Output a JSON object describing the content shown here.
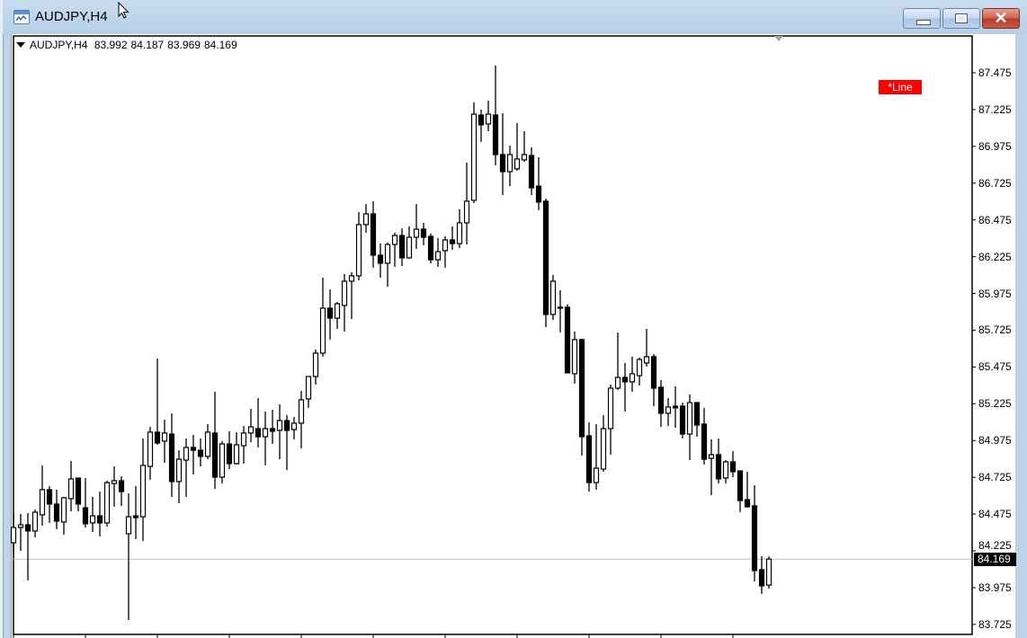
{
  "window": {
    "title": "AUDJPY,H4",
    "buttons": [
      "minimize",
      "maximize",
      "close"
    ]
  },
  "chart_header": {
    "symbol": "AUDJPY,H4",
    "open": "83.992",
    "high": "84.187",
    "low": "83.969",
    "close": "84.169"
  },
  "line_object_label": "*Line",
  "current_price": "84.169",
  "colors": {
    "background": "#ffffff",
    "candle_up_fill": "#ffffff",
    "candle_down_fill": "#000000",
    "candle_outline": "#000000",
    "current_price_line": "#c0c0c0",
    "line_label_bg": "#ff0000",
    "window_frame": "#bcd3ea"
  },
  "chart_data": {
    "type": "candlestick",
    "symbol": "AUDJPY",
    "timeframe": "H4",
    "ylim": [
      83.725,
      87.6
    ],
    "y_ticks": [
      "87.475",
      "87.225",
      "86.975",
      "86.725",
      "86.475",
      "86.225",
      "85.975",
      "85.725",
      "85.475",
      "85.225",
      "84.975",
      "84.725",
      "84.475",
      "84.225",
      "83.975",
      "83.725"
    ],
    "grid": false,
    "x_tick_every_bars": 10,
    "current_price_line": 84.169,
    "ohlc": [
      [
        84.28,
        84.482,
        84.201,
        84.384
      ],
      [
        84.384,
        84.476,
        84.225,
        84.402
      ],
      [
        84.402,
        84.482,
        84.024,
        84.36
      ],
      [
        84.36,
        84.506,
        84.317,
        84.488
      ],
      [
        84.47,
        84.806,
        84.396,
        84.641
      ],
      [
        84.641,
        84.665,
        84.415,
        84.543
      ],
      [
        84.543,
        84.641,
        84.372,
        84.427
      ],
      [
        84.421,
        84.592,
        84.335,
        84.586
      ],
      [
        84.58,
        84.836,
        84.494,
        84.714
      ],
      [
        84.72,
        84.72,
        84.494,
        84.543
      ],
      [
        84.518,
        84.72,
        84.384,
        84.409
      ],
      [
        84.415,
        84.592,
        84.353,
        84.463
      ],
      [
        84.463,
        84.628,
        84.323,
        84.415
      ],
      [
        84.415,
        84.702,
        84.39,
        84.689
      ],
      [
        84.683,
        84.799,
        84.525,
        84.702
      ],
      [
        84.702,
        84.732,
        84.531,
        84.628
      ],
      [
        84.341,
        84.616,
        83.755,
        84.457
      ],
      [
        84.463,
        84.665,
        84.305,
        84.451
      ],
      [
        84.457,
        84.989,
        84.292,
        84.806
      ],
      [
        84.799,
        85.068,
        84.708,
        85.032
      ],
      [
        85.032,
        85.533,
        84.946,
        84.958
      ],
      [
        84.971,
        85.117,
        84.824,
        85.026
      ],
      [
        85.019,
        85.16,
        84.592,
        84.696
      ],
      [
        84.696,
        84.909,
        84.549,
        84.848
      ],
      [
        84.842,
        84.989,
        84.592,
        84.928
      ],
      [
        84.928,
        85.013,
        84.744,
        84.909
      ],
      [
        84.909,
        84.989,
        84.799,
        84.867
      ],
      [
        84.867,
        85.087,
        84.848,
        85.032
      ],
      [
        85.026,
        85.307,
        84.647,
        84.726
      ],
      [
        84.726,
        84.971,
        84.683,
        84.952
      ],
      [
        84.952,
        85.038,
        84.781,
        84.818
      ],
      [
        84.818,
        85.032,
        84.812,
        84.946
      ],
      [
        84.94,
        85.074,
        84.818,
        85.026
      ],
      [
        85.026,
        85.19,
        84.964,
        85.068
      ],
      [
        85.056,
        85.264,
        84.928,
        85.001
      ],
      [
        85.001,
        85.172,
        84.806,
        85.056
      ],
      [
        85.056,
        85.184,
        84.952,
        85.038
      ],
      [
        85.044,
        85.221,
        84.848,
        85.111
      ],
      [
        85.111,
        85.148,
        84.775,
        85.044
      ],
      [
        85.05,
        85.135,
        84.983,
        85.093
      ],
      [
        85.093,
        85.313,
        84.922,
        85.252
      ],
      [
        85.258,
        85.41,
        85.197,
        85.41
      ],
      [
        85.41,
        85.594,
        85.355,
        85.569
      ],
      [
        85.569,
        86.082,
        85.545,
        85.875
      ],
      [
        85.875,
        86.003,
        85.661,
        85.807
      ],
      [
        85.807,
        85.917,
        85.734,
        85.905
      ],
      [
        85.893,
        86.107,
        85.716,
        86.058
      ],
      [
        86.058,
        86.119,
        85.801,
        86.095
      ],
      [
        86.095,
        86.528,
        86.064,
        86.443
      ],
      [
        86.443,
        86.583,
        86.388,
        86.516
      ],
      [
        86.516,
        86.602,
        86.15,
        86.235
      ],
      [
        86.235,
        86.315,
        86.082,
        86.18
      ],
      [
        86.18,
        86.321,
        86.021,
        86.308
      ],
      [
        86.308,
        86.388,
        86.156,
        86.369
      ],
      [
        86.369,
        86.418,
        86.162,
        86.217
      ],
      [
        86.217,
        86.431,
        86.211,
        86.357
      ],
      [
        86.357,
        86.583,
        86.278,
        86.412
      ],
      [
        86.412,
        86.455,
        86.302,
        86.357
      ],
      [
        86.363,
        86.382,
        86.18,
        86.204
      ],
      [
        86.204,
        86.351,
        86.156,
        86.259
      ],
      [
        86.266,
        86.363,
        86.15,
        86.339
      ],
      [
        86.339,
        86.431,
        86.272,
        86.314
      ],
      [
        86.314,
        86.547,
        86.284,
        86.455
      ],
      [
        86.455,
        86.864,
        86.308,
        86.602
      ],
      [
        86.608,
        87.274,
        86.589,
        87.194
      ],
      [
        87.188,
        87.225,
        87.005,
        87.121
      ],
      [
        87.127,
        87.286,
        87.078,
        87.194
      ],
      [
        87.188,
        87.524,
        86.846,
        86.919
      ],
      [
        86.919,
        87.2,
        86.644,
        86.803
      ],
      [
        86.803,
        86.98,
        86.705,
        86.919
      ],
      [
        86.822,
        87.133,
        86.809,
        86.889
      ],
      [
        86.883,
        87.078,
        86.87,
        86.919
      ],
      [
        86.913,
        86.968,
        86.644,
        86.693
      ],
      [
        86.705,
        86.901,
        86.541,
        86.596
      ],
      [
        86.602,
        86.62,
        85.746,
        85.832
      ],
      [
        85.832,
        86.101,
        85.795,
        86.058
      ],
      [
        85.881,
        85.997,
        85.71,
        85.878
      ],
      [
        85.881,
        85.9,
        85.435,
        85.435
      ],
      [
        85.429,
        85.716,
        85.362,
        85.661
      ],
      [
        85.661,
        85.667,
        84.873,
        85.001
      ],
      [
        85.007,
        85.099,
        84.628,
        84.689
      ],
      [
        84.689,
        85.087,
        84.641,
        84.787
      ],
      [
        84.781,
        85.148,
        84.763,
        85.056
      ],
      [
        85.056,
        85.355,
        84.879,
        85.331
      ],
      [
        85.331,
        85.71,
        85.319,
        85.404
      ],
      [
        85.404,
        85.502,
        85.172,
        85.374
      ],
      [
        85.374,
        85.545,
        85.307,
        85.429
      ],
      [
        85.416,
        85.539,
        85.349,
        85.526
      ],
      [
        85.502,
        85.734,
        85.478,
        85.545
      ],
      [
        85.545,
        85.563,
        85.209,
        85.331
      ],
      [
        85.337,
        85.386,
        85.068,
        85.16
      ],
      [
        85.16,
        85.264,
        85.074,
        85.203
      ],
      [
        85.209,
        85.343,
        85.062,
        85.197
      ],
      [
        85.209,
        85.233,
        84.989,
        85.019
      ],
      [
        85.019,
        85.288,
        84.842,
        85.233
      ],
      [
        85.233,
        85.233,
        85.001,
        85.08
      ],
      [
        85.087,
        85.197,
        84.812,
        84.848
      ],
      [
        84.854,
        84.983,
        84.604,
        84.879
      ],
      [
        84.879,
        84.989,
        84.683,
        84.714
      ],
      [
        84.72,
        84.842,
        84.683,
        84.83
      ],
      [
        84.83,
        84.903,
        84.726,
        84.763
      ],
      [
        84.769,
        84.769,
        84.488,
        84.567
      ],
      [
        84.573,
        84.763,
        84.518,
        84.525
      ],
      [
        84.531,
        84.671,
        84.018,
        84.091
      ],
      [
        84.097,
        84.189,
        83.932,
        83.987
      ],
      [
        83.992,
        84.187,
        83.969,
        84.169
      ]
    ]
  }
}
